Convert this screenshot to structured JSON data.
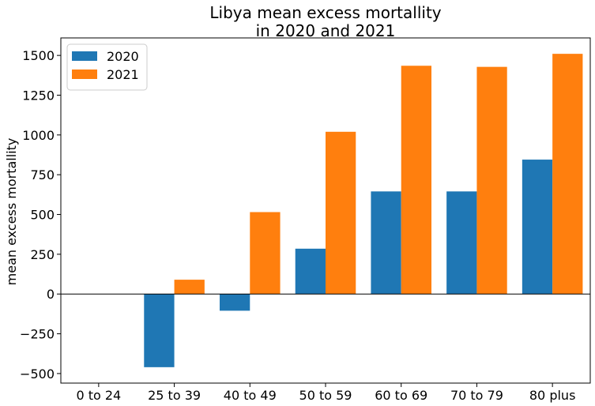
{
  "chart_data": {
    "type": "bar",
    "title": [
      "Libya mean excess mortallity",
      "in 2020 and 2021"
    ],
    "xlabel": "",
    "ylabel": "mean excess mortallity",
    "categories": [
      "0 to 24",
      "25 to 39",
      "40 to 49",
      "50 to 59",
      "60 to 69",
      "70 to 79",
      "80 plus"
    ],
    "series": [
      {
        "name": "2020",
        "color": "#1f77b4",
        "values": [
          0,
          -460,
          -105,
          285,
          645,
          645,
          845
        ]
      },
      {
        "name": "2021",
        "color": "#ff7f0e",
        "values": [
          0,
          90,
          515,
          1020,
          1435,
          1428,
          1510
        ]
      }
    ],
    "ylim": [
      -560,
      1610
    ],
    "yticks": [
      -500,
      -250,
      0,
      250,
      500,
      750,
      1000,
      1250,
      1500
    ],
    "ytick_labels": [
      "−500",
      "−250",
      "0",
      "250",
      "500",
      "750",
      "1000",
      "1250",
      "1500"
    ],
    "zero_line": true,
    "grid": false,
    "legend": "top-left"
  }
}
